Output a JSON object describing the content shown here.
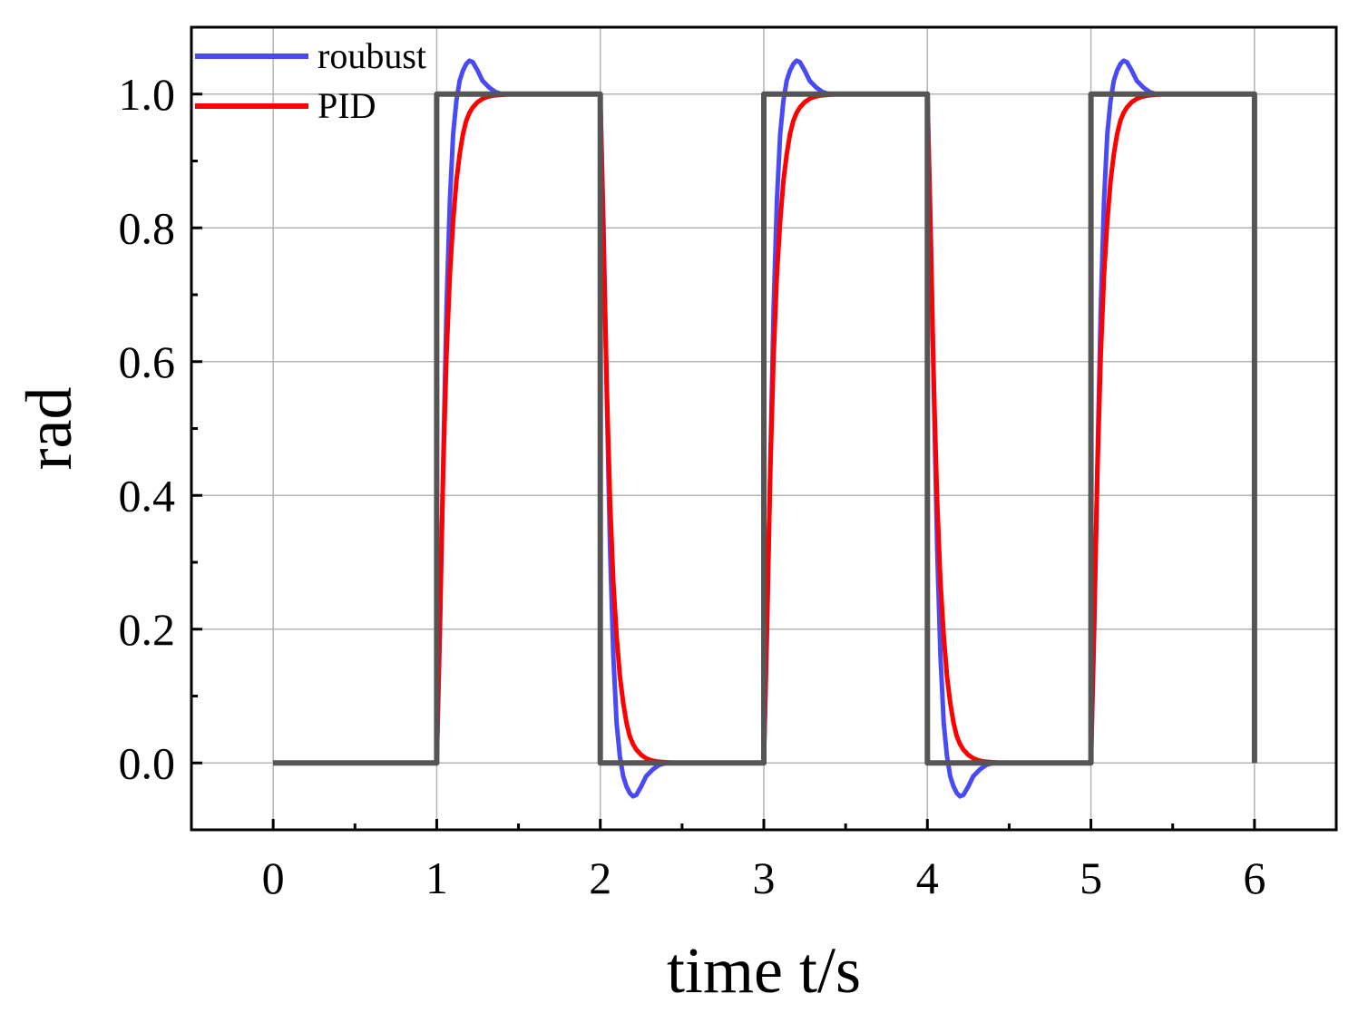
{
  "chart_data": {
    "type": "line",
    "title": "",
    "xlabel": "time t/s",
    "ylabel": "rad",
    "xlim": [
      -0.5,
      6.5
    ],
    "ylim": [
      -0.1,
      1.1
    ],
    "xticks": [
      "0",
      "1",
      "2",
      "3",
      "4",
      "5",
      "6"
    ],
    "yticks": [
      "0.0",
      "0.2",
      "0.4",
      "0.6",
      "0.8",
      "1.0"
    ],
    "grid": true,
    "legend_position": "top-left",
    "series": [
      {
        "name": "roubust",
        "color": "#4a4af5",
        "x": [
          0.0,
          0.99,
          1.0,
          1.02,
          1.04,
          1.06,
          1.08,
          1.1,
          1.12,
          1.14,
          1.16,
          1.18,
          1.2,
          1.22,
          1.25,
          1.28,
          1.32,
          1.36,
          1.4,
          1.5,
          1.55,
          1.99,
          2.0,
          2.02,
          2.04,
          2.06,
          2.08,
          2.1,
          2.12,
          2.14,
          2.16,
          2.18,
          2.2,
          2.22,
          2.25,
          2.28,
          2.32,
          2.36,
          2.4,
          2.5,
          2.55,
          2.99,
          3.0,
          3.02,
          3.04,
          3.06,
          3.08,
          3.1,
          3.12,
          3.14,
          3.16,
          3.18,
          3.2,
          3.22,
          3.25,
          3.28,
          3.32,
          3.36,
          3.4,
          3.5,
          3.55,
          3.99,
          4.0,
          4.02,
          4.04,
          4.06,
          4.08,
          4.1,
          4.12,
          4.14,
          4.16,
          4.18,
          4.2,
          4.22,
          4.25,
          4.28,
          4.32,
          4.36,
          4.4,
          4.5,
          4.55,
          4.99,
          5.0,
          5.02,
          5.04,
          5.06,
          5.08,
          5.1,
          5.12,
          5.14,
          5.16,
          5.18,
          5.2,
          5.22,
          5.25,
          5.28,
          5.32,
          5.36,
          5.4,
          5.5,
          5.55
        ],
        "y": [
          0.0,
          0.0,
          0.0,
          0.2,
          0.45,
          0.68,
          0.84,
          0.94,
          0.99,
          1.02,
          1.035,
          1.045,
          1.05,
          1.048,
          1.035,
          1.02,
          1.01,
          1.003,
          1.0,
          1.0,
          1.0,
          1.0,
          1.0,
          0.8,
          0.55,
          0.32,
          0.16,
          0.06,
          0.01,
          -0.02,
          -0.035,
          -0.045,
          -0.05,
          -0.048,
          -0.035,
          -0.02,
          -0.01,
          -0.003,
          0.0,
          0.0,
          0.0,
          0.0,
          0.0,
          0.2,
          0.45,
          0.68,
          0.84,
          0.94,
          0.99,
          1.02,
          1.035,
          1.045,
          1.05,
          1.048,
          1.035,
          1.02,
          1.01,
          1.003,
          1.0,
          1.0,
          1.0,
          1.0,
          1.0,
          0.8,
          0.55,
          0.32,
          0.16,
          0.06,
          0.01,
          -0.02,
          -0.035,
          -0.045,
          -0.05,
          -0.048,
          -0.035,
          -0.02,
          -0.01,
          -0.003,
          0.0,
          0.0,
          0.0,
          0.0,
          0.0,
          0.2,
          0.45,
          0.68,
          0.84,
          0.94,
          0.99,
          1.02,
          1.035,
          1.045,
          1.05,
          1.048,
          1.035,
          1.02,
          1.01,
          1.003,
          1.0,
          1.0,
          1.0
        ]
      },
      {
        "name": "PID",
        "color": "#ff0000",
        "x": [
          0.0,
          1.0,
          1.02,
          1.04,
          1.06,
          1.08,
          1.1,
          1.12,
          1.14,
          1.16,
          1.18,
          1.2,
          1.22,
          1.25,
          1.28,
          1.31,
          1.35,
          1.4,
          1.45,
          1.5,
          2.0,
          2.02,
          2.04,
          2.06,
          2.08,
          2.1,
          2.12,
          2.14,
          2.16,
          2.18,
          2.2,
          2.22,
          2.25,
          2.28,
          2.31,
          2.35,
          2.4,
          2.45,
          2.5,
          3.0,
          3.02,
          3.04,
          3.06,
          3.08,
          3.1,
          3.12,
          3.14,
          3.16,
          3.18,
          3.2,
          3.22,
          3.25,
          3.28,
          3.31,
          3.35,
          3.4,
          3.45,
          3.5,
          4.0,
          4.02,
          4.04,
          4.06,
          4.08,
          4.1,
          4.12,
          4.14,
          4.16,
          4.18,
          4.2,
          4.22,
          4.25,
          4.28,
          4.31,
          4.35,
          4.4,
          4.45,
          4.5,
          5.0,
          5.02,
          5.04,
          5.06,
          5.08,
          5.1,
          5.12,
          5.14,
          5.16,
          5.18,
          5.2,
          5.22,
          5.25,
          5.28,
          5.31,
          5.35,
          5.4,
          5.45,
          5.5
        ],
        "y": [
          0.0,
          0.0,
          0.22,
          0.44,
          0.61,
          0.73,
          0.81,
          0.87,
          0.91,
          0.94,
          0.96,
          0.972,
          0.98,
          0.988,
          0.993,
          0.996,
          0.998,
          0.999,
          1.0,
          1.0,
          1.0,
          0.78,
          0.56,
          0.39,
          0.27,
          0.19,
          0.13,
          0.09,
          0.06,
          0.04,
          0.028,
          0.02,
          0.012,
          0.007,
          0.004,
          0.002,
          0.001,
          0.0,
          0.0,
          0.0,
          0.22,
          0.44,
          0.61,
          0.73,
          0.81,
          0.87,
          0.91,
          0.94,
          0.96,
          0.972,
          0.98,
          0.988,
          0.993,
          0.996,
          0.998,
          0.999,
          1.0,
          1.0,
          1.0,
          0.78,
          0.56,
          0.39,
          0.27,
          0.19,
          0.13,
          0.09,
          0.06,
          0.04,
          0.028,
          0.02,
          0.012,
          0.007,
          0.004,
          0.002,
          0.001,
          0.0,
          0.0,
          0.0,
          0.22,
          0.44,
          0.61,
          0.73,
          0.81,
          0.87,
          0.91,
          0.94,
          0.96,
          0.972,
          0.98,
          0.988,
          0.993,
          0.996,
          0.998,
          0.999,
          1.0,
          1.0
        ]
      },
      {
        "color": "#555555",
        "x": [
          0,
          1,
          1,
          2,
          2,
          3,
          3,
          4,
          4,
          5,
          5,
          6,
          6
        ],
        "y": [
          0,
          0,
          1,
          1,
          0,
          0,
          1,
          1,
          0,
          0,
          1,
          1,
          0
        ]
      }
    ]
  }
}
